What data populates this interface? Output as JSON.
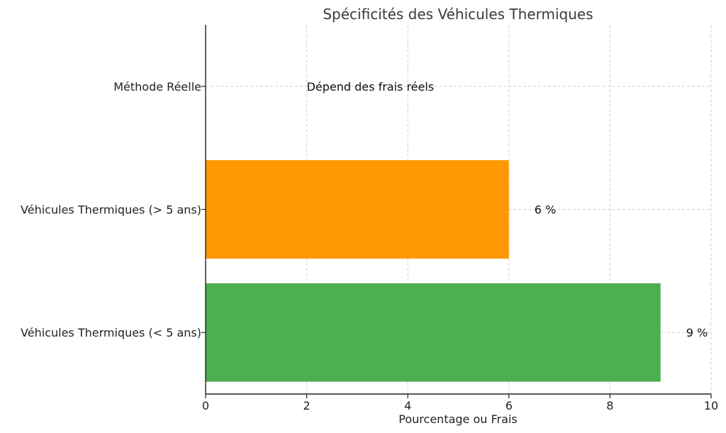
{
  "chart_data": {
    "type": "bar",
    "orientation": "horizontal",
    "title": "Spécificités des Véhicules Thermiques",
    "xlabel": "Pourcentage ou Frais",
    "ylabel": "",
    "xlim": [
      0,
      10
    ],
    "xticks": [
      0,
      2,
      4,
      6,
      8,
      10
    ],
    "grid": true,
    "categories": [
      "Véhicules Thermiques (< 5 ans)",
      "Véhicules Thermiques (> 5 ans)",
      "Méthode Réelle"
    ],
    "values": [
      9,
      6,
      0
    ],
    "colors": [
      "#4caf50",
      "#ff9800",
      "#ffffff"
    ],
    "data_labels": [
      "9 %",
      "6 %",
      "Dépend des frais réels"
    ]
  }
}
